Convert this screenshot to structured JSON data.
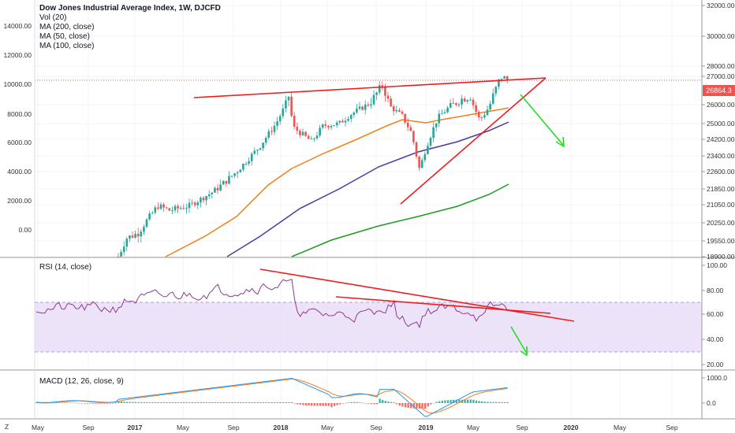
{
  "header": {
    "title": "Dow Jones Industrial Average Index, 1W, DJCFD",
    "indicators": [
      "Vol (20)",
      "MA (200, close)",
      "MA (50, close)",
      "MA (100, close)"
    ]
  },
  "rsi_pane": {
    "label": "RSI (14, close)"
  },
  "macd_pane": {
    "label": "MACD (12, 26, close, 9)"
  },
  "current_price": "26864.3",
  "left_axis_labels": [
    "14000.00",
    "12000.00",
    "10000.00",
    "8000.00",
    "6000.00",
    "4000.00",
    "2000.00",
    "0.00"
  ],
  "footer_left_label": "Z",
  "colors": {
    "up": "#26a69a",
    "down": "#ef5350",
    "trend": "#ef1d1d",
    "arrow": "#22dd22",
    "ma50": "#f57f17",
    "ma100": "#4a3aa3",
    "ma200": "#1e9a1e",
    "rsi": "#8e3a8e",
    "rsi_band": "#e7d9f7",
    "macd": "#2196f3",
    "signal": "#ff7a1a"
  },
  "chart_data": {
    "type": "candlestick",
    "price_axis": [
      32000,
      30000,
      28000,
      27000,
      26000,
      25000,
      24200,
      23400,
      22600,
      21850,
      21050,
      20250,
      19550,
      18900
    ],
    "price_axis_labels": [
      "32000.00",
      "30000.00",
      "28000.00",
      "27000.00",
      "26000.00",
      "25000.00",
      "24200.00",
      "23400.00",
      "22600.00",
      "21850.00",
      "21050.00",
      "20250.00",
      "19550.00",
      "18900.00"
    ],
    "x_labels": [
      "May",
      "Sep",
      "2017",
      "May",
      "Sep",
      "2018",
      "May",
      "Sep",
      "2019",
      "May",
      "Sep",
      "2020",
      "May",
      "Sep"
    ],
    "rsi_axis": [
      100,
      80,
      60,
      40,
      20
    ],
    "rsi_axis_labels": [
      "100.00",
      "80.00",
      "60.00",
      "40.00",
      "20.00"
    ],
    "macd_axis": [
      1000,
      0
    ],
    "macd_axis_labels": [
      "1000.0",
      "0.0"
    ],
    "last_price": 26864.3
  }
}
